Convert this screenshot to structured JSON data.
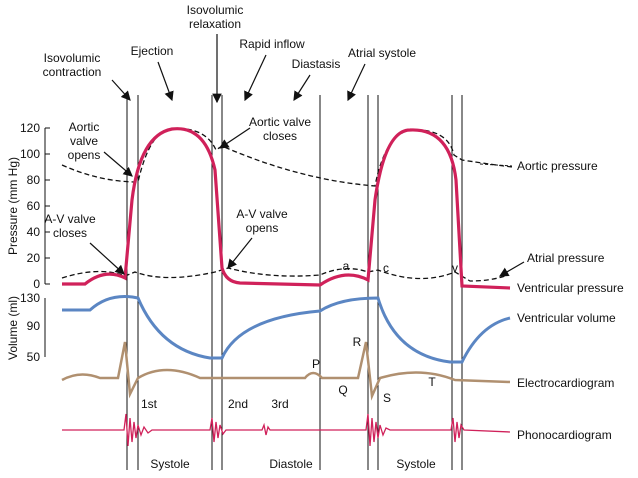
{
  "phase_labels": [
    [
      "Isovolumic",
      "contraction"
    ],
    [
      "Ejection"
    ],
    [
      "Isovolumic",
      "relaxation"
    ],
    [
      "Rapid inflow"
    ],
    [
      "Diastasis"
    ],
    [
      "Atrial systole"
    ]
  ],
  "curve_notes": [
    [
      "Aortic",
      "valve",
      "opens"
    ],
    [
      "Aortic valve",
      "closes"
    ],
    [
      "A-V valve",
      "closes"
    ],
    [
      "A-V valve",
      "opens"
    ]
  ],
  "y_axes": {
    "pressure": {
      "label": "Pressure (mm Hg)",
      "ticks": [
        "120",
        "100",
        "80",
        "60",
        "40",
        "20",
        "0"
      ]
    },
    "volume": {
      "label": "Volume (ml)",
      "ticks": [
        "130",
        "90",
        "50"
      ]
    }
  },
  "trace_labels": [
    "Aortic pressure",
    "Atrial pressure",
    "Ventricular pressure",
    "Ventricular volume",
    "Electrocardiogram",
    "Phonocardiogram"
  ],
  "wave_letters": [
    "a",
    "c",
    "v",
    "P",
    "Q",
    "R",
    "S",
    "T"
  ],
  "heart_sounds": [
    "1st",
    "2nd",
    "3rd"
  ],
  "periods": [
    "Systole",
    "Diastole",
    "Systole"
  ]
}
